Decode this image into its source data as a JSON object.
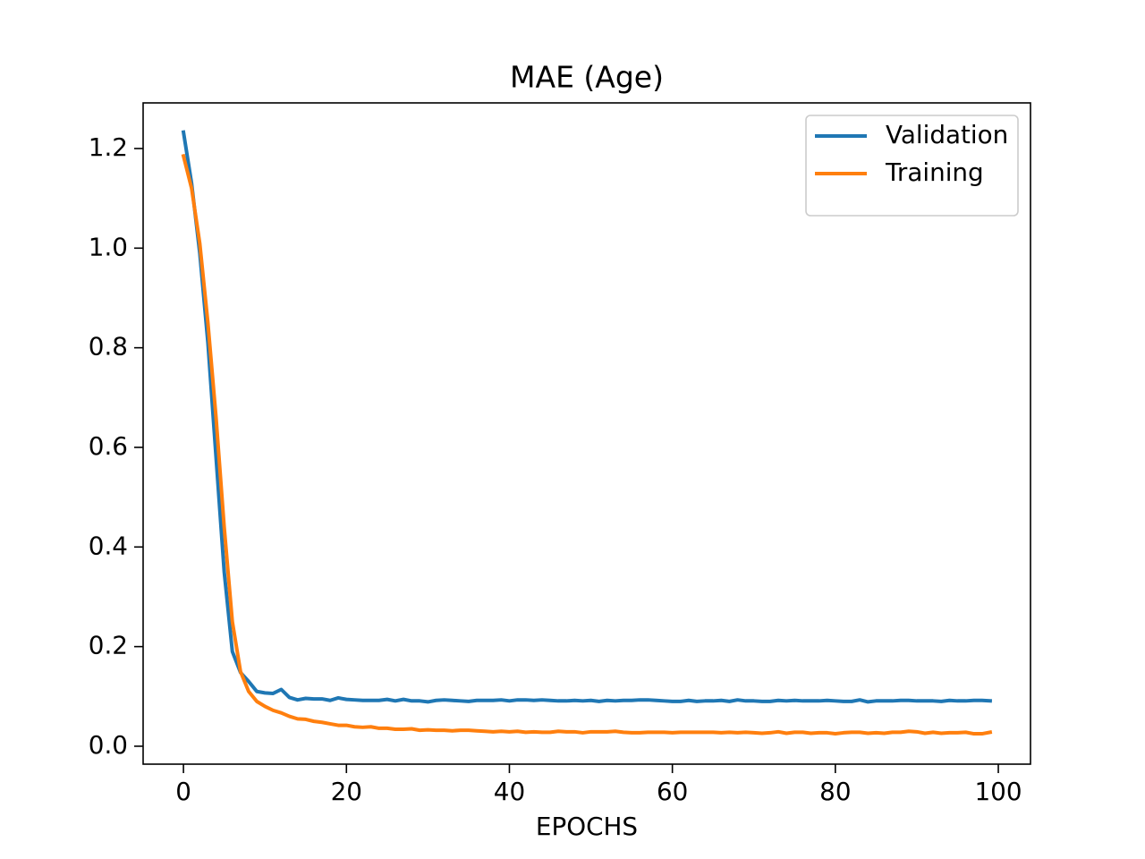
{
  "chart_data": {
    "type": "line",
    "title": "MAE (Age)",
    "x_label": "EPOCHS",
    "x": [
      0,
      1,
      2,
      3,
      4,
      5,
      6,
      7,
      8,
      9,
      10,
      11,
      12,
      13,
      14,
      15,
      16,
      17,
      18,
      19,
      20,
      21,
      22,
      23,
      24,
      25,
      26,
      27,
      28,
      29,
      30,
      31,
      32,
      33,
      34,
      35,
      36,
      37,
      38,
      39,
      40,
      41,
      42,
      43,
      44,
      45,
      46,
      47,
      48,
      49,
      50,
      51,
      52,
      53,
      54,
      55,
      56,
      57,
      58,
      59,
      60,
      61,
      62,
      63,
      64,
      65,
      66,
      67,
      68,
      69,
      70,
      71,
      72,
      73,
      74,
      75,
      76,
      77,
      78,
      79,
      80,
      81,
      82,
      83,
      84,
      85,
      86,
      87,
      88,
      89,
      90,
      91,
      92,
      93,
      94,
      95,
      96,
      97,
      98,
      99
    ],
    "series": [
      {
        "name": "Validation",
        "color": "#1f77b4",
        "values": [
          1.233,
          1.13,
          0.99,
          0.81,
          0.58,
          0.35,
          0.19,
          0.148,
          0.13,
          0.11,
          0.107,
          0.106,
          0.114,
          0.098,
          0.093,
          0.096,
          0.095,
          0.095,
          0.092,
          0.097,
          0.094,
          0.093,
          0.092,
          0.092,
          0.092,
          0.094,
          0.091,
          0.094,
          0.091,
          0.091,
          0.089,
          0.092,
          0.093,
          0.092,
          0.091,
          0.09,
          0.092,
          0.092,
          0.092,
          0.093,
          0.091,
          0.093,
          0.093,
          0.092,
          0.093,
          0.092,
          0.091,
          0.091,
          0.092,
          0.091,
          0.092,
          0.09,
          0.092,
          0.091,
          0.092,
          0.092,
          0.093,
          0.093,
          0.092,
          0.091,
          0.09,
          0.09,
          0.092,
          0.09,
          0.091,
          0.091,
          0.092,
          0.09,
          0.093,
          0.091,
          0.091,
          0.09,
          0.09,
          0.092,
          0.091,
          0.092,
          0.091,
          0.091,
          0.091,
          0.092,
          0.091,
          0.09,
          0.09,
          0.093,
          0.089,
          0.091,
          0.091,
          0.091,
          0.092,
          0.092,
          0.091,
          0.091,
          0.091,
          0.09,
          0.092,
          0.091,
          0.091,
          0.092,
          0.092,
          0.091
        ]
      },
      {
        "name": "Training",
        "color": "#ff7f0e",
        "values": [
          1.185,
          1.12,
          1.01,
          0.85,
          0.66,
          0.44,
          0.25,
          0.15,
          0.11,
          0.09,
          0.08,
          0.072,
          0.067,
          0.06,
          0.055,
          0.054,
          0.05,
          0.048,
          0.045,
          0.042,
          0.042,
          0.039,
          0.038,
          0.039,
          0.036,
          0.036,
          0.034,
          0.034,
          0.035,
          0.032,
          0.033,
          0.032,
          0.032,
          0.031,
          0.032,
          0.032,
          0.031,
          0.03,
          0.029,
          0.03,
          0.029,
          0.03,
          0.028,
          0.029,
          0.028,
          0.028,
          0.03,
          0.029,
          0.029,
          0.027,
          0.029,
          0.029,
          0.029,
          0.03,
          0.028,
          0.027,
          0.027,
          0.028,
          0.028,
          0.028,
          0.027,
          0.028,
          0.028,
          0.028,
          0.028,
          0.028,
          0.027,
          0.028,
          0.027,
          0.028,
          0.027,
          0.026,
          0.027,
          0.029,
          0.026,
          0.028,
          0.028,
          0.026,
          0.027,
          0.027,
          0.025,
          0.027,
          0.028,
          0.028,
          0.026,
          0.027,
          0.026,
          0.028,
          0.028,
          0.03,
          0.029,
          0.026,
          0.028,
          0.026,
          0.027,
          0.027,
          0.028,
          0.025,
          0.025,
          0.028
        ]
      }
    ],
    "xlim": [
      -4.95,
      103.95
    ],
    "xticks": [
      0,
      20,
      40,
      60,
      80,
      100
    ],
    "ylim": [
      -0.036,
      1.2916
    ],
    "yticks": [
      {
        "value": 0,
        "label": "0.0"
      },
      0.2,
      0.4,
      0.6,
      0.8,
      {
        "value": 1,
        "label": "1.0"
      },
      1.2
    ],
    "legend": "upper right"
  }
}
